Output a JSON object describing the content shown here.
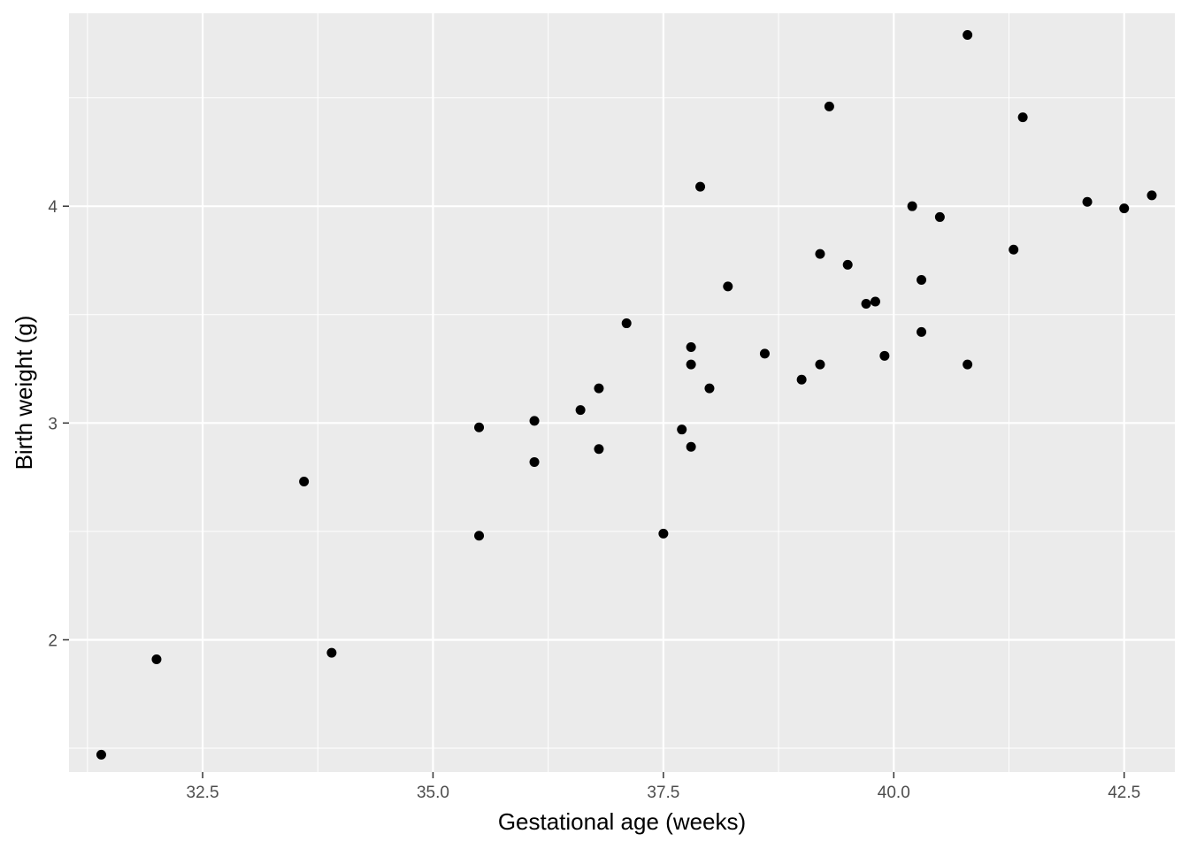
{
  "chart_data": {
    "type": "scatter",
    "title": "",
    "xlabel": "Gestational age (weeks)",
    "ylabel": "Birth weight (g)",
    "xlim": [
      31.05,
      43.05
    ],
    "ylim": [
      1.39,
      4.89
    ],
    "x_ticks": [
      32.5,
      35.0,
      37.5,
      40.0,
      42.5
    ],
    "x_tick_labels": [
      "32.5",
      "35.0",
      "37.5",
      "40.0",
      "42.5"
    ],
    "y_ticks": [
      2,
      3,
      4
    ],
    "y_tick_labels": [
      "2",
      "3",
      "4"
    ],
    "x_minor_ticks": [
      31.25,
      33.75,
      36.25,
      38.75,
      41.25
    ],
    "y_minor_ticks": [
      1.5,
      2.5,
      3.5,
      4.5
    ],
    "grid": true,
    "panel_background": "#ebebeb",
    "grid_color": "#ffffff",
    "point_color": "#000000",
    "points": [
      {
        "x": 31.4,
        "y": 1.47
      },
      {
        "x": 32.0,
        "y": 1.91
      },
      {
        "x": 33.6,
        "y": 2.73
      },
      {
        "x": 33.9,
        "y": 1.94
      },
      {
        "x": 35.5,
        "y": 2.98
      },
      {
        "x": 35.5,
        "y": 2.48
      },
      {
        "x": 36.1,
        "y": 3.01
      },
      {
        "x": 36.1,
        "y": 2.82
      },
      {
        "x": 36.6,
        "y": 3.06
      },
      {
        "x": 36.8,
        "y": 3.16
      },
      {
        "x": 36.8,
        "y": 2.88
      },
      {
        "x": 37.1,
        "y": 3.46
      },
      {
        "x": 37.5,
        "y": 2.49
      },
      {
        "x": 37.7,
        "y": 2.97
      },
      {
        "x": 37.8,
        "y": 3.35
      },
      {
        "x": 37.8,
        "y": 3.27
      },
      {
        "x": 37.8,
        "y": 2.89
      },
      {
        "x": 37.9,
        "y": 4.09
      },
      {
        "x": 38.0,
        "y": 3.16
      },
      {
        "x": 38.2,
        "y": 3.63
      },
      {
        "x": 38.6,
        "y": 3.32
      },
      {
        "x": 39.0,
        "y": 3.2
      },
      {
        "x": 39.2,
        "y": 3.78
      },
      {
        "x": 39.2,
        "y": 3.27
      },
      {
        "x": 39.3,
        "y": 4.46
      },
      {
        "x": 39.5,
        "y": 3.73
      },
      {
        "x": 39.7,
        "y": 3.55
      },
      {
        "x": 39.8,
        "y": 3.56
      },
      {
        "x": 39.9,
        "y": 3.31
      },
      {
        "x": 40.2,
        "y": 4.0
      },
      {
        "x": 40.3,
        "y": 3.66
      },
      {
        "x": 40.3,
        "y": 3.42
      },
      {
        "x": 40.5,
        "y": 3.95
      },
      {
        "x": 40.8,
        "y": 4.79
      },
      {
        "x": 40.8,
        "y": 3.27
      },
      {
        "x": 41.3,
        "y": 3.8
      },
      {
        "x": 41.4,
        "y": 4.41
      },
      {
        "x": 42.1,
        "y": 4.02
      },
      {
        "x": 42.5,
        "y": 3.99
      },
      {
        "x": 42.8,
        "y": 4.05
      }
    ]
  }
}
